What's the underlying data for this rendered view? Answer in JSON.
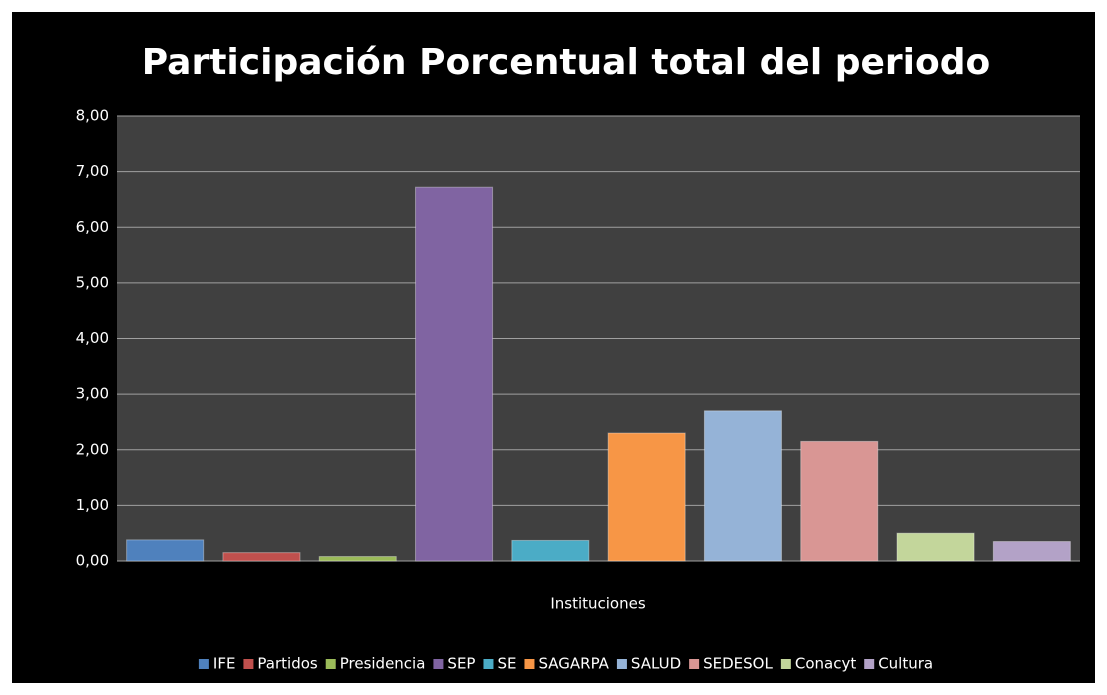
{
  "chart_data": {
    "type": "bar",
    "title": "Participación Porcentual total del periodo",
    "x_label": "Instituciones",
    "series": [
      {
        "name": "IFE",
        "color": "#4f81bd",
        "values": [
          0.38
        ]
      },
      {
        "name": "Partidos",
        "color": "#c0504d",
        "values": [
          0.15
        ]
      },
      {
        "name": "Presidencia",
        "color": "#9bbb59",
        "values": [
          0.08
        ]
      },
      {
        "name": "SEP",
        "color": "#8064a2",
        "values": [
          6.72
        ]
      },
      {
        "name": "SE",
        "color": "#4bacc6",
        "values": [
          0.37
        ]
      },
      {
        "name": "SAGARPA",
        "color": "#f79646",
        "values": [
          2.3
        ]
      },
      {
        "name": "SALUD",
        "color": "#95b3d7",
        "values": [
          2.7
        ]
      },
      {
        "name": "SEDESOL",
        "color": "#d99694",
        "values": [
          2.15
        ]
      },
      {
        "name": "Conacyt",
        "color": "#c3d69b",
        "values": [
          0.5
        ]
      },
      {
        "name": "Cultura",
        "color": "#b3a2c7",
        "values": [
          0.35
        ]
      }
    ],
    "ylim": [
      0,
      8
    ],
    "yticks": [
      {
        "value": 0,
        "label": "0,00"
      },
      {
        "value": 1,
        "label": "1,00"
      },
      {
        "value": 2,
        "label": "2,00"
      },
      {
        "value": 3,
        "label": "3,00"
      },
      {
        "value": 4,
        "label": "4,00"
      },
      {
        "value": 5,
        "label": "5,00"
      },
      {
        "value": 6,
        "label": "6,00"
      },
      {
        "value": 7,
        "label": "7,00"
      },
      {
        "value": 8,
        "label": "8,00"
      }
    ],
    "grid": true,
    "legend": "bottom"
  }
}
